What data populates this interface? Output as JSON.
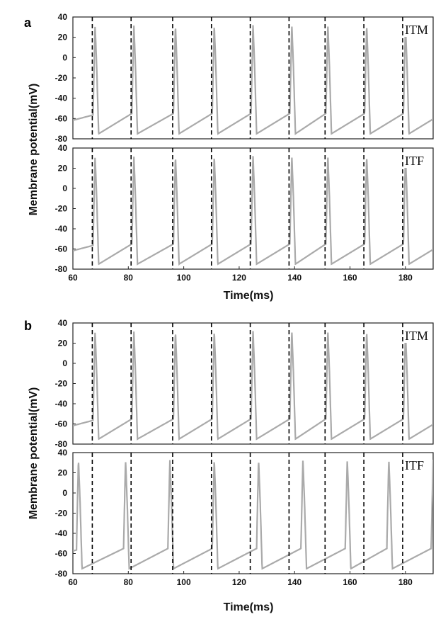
{
  "figure": {
    "panels": [
      {
        "label": "a",
        "xlabel": "Time(ms)",
        "ylabel": "Membrane potential(mV)"
      },
      {
        "label": "b",
        "xlabel": "Time(ms)",
        "ylabel": "Membrane potential(mV)"
      }
    ]
  },
  "chart_data": [
    {
      "type": "line",
      "panel": "a",
      "title": "ITM",
      "xlim": [
        60,
        190
      ],
      "ylim": [
        -80,
        40
      ],
      "xticks": [
        60,
        80,
        100,
        120,
        140,
        160,
        180
      ],
      "yticks": [
        -80,
        -60,
        -40,
        -20,
        0,
        20,
        40
      ],
      "line_color": "#aaaaaa",
      "grid": false,
      "markers": [
        67,
        81,
        96,
        110,
        124,
        138,
        151,
        165,
        179
      ],
      "spikes": [
        68,
        82,
        97,
        111,
        125,
        139,
        152,
        166,
        180
      ],
      "rest": -75,
      "peak": 32
    },
    {
      "type": "line",
      "panel": "a",
      "title": "ITF",
      "xlim": [
        60,
        190
      ],
      "ylim": [
        -80,
        40
      ],
      "xticks": [
        60,
        80,
        100,
        120,
        140,
        160,
        180
      ],
      "yticks": [
        -80,
        -60,
        -40,
        -20,
        0,
        20,
        40
      ],
      "line_color": "#aaaaaa",
      "grid": false,
      "markers": [
        67,
        81,
        96,
        110,
        124,
        138,
        151,
        165,
        179
      ],
      "spikes": [
        68,
        82,
        97,
        111,
        125,
        139,
        152,
        166,
        180
      ],
      "rest": -75,
      "peak": 32
    },
    {
      "type": "line",
      "panel": "b",
      "title": "ITM",
      "xlim": [
        60,
        190
      ],
      "ylim": [
        -80,
        40
      ],
      "xticks": [
        60,
        80,
        100,
        120,
        140,
        160,
        180
      ],
      "yticks": [
        -80,
        -60,
        -40,
        -20,
        0,
        20,
        40
      ],
      "line_color": "#aaaaaa",
      "grid": false,
      "markers": [
        67,
        81,
        96,
        110,
        124,
        138,
        151,
        165,
        179
      ],
      "spikes": [
        68,
        82,
        97,
        111,
        125,
        139,
        152,
        166,
        180
      ],
      "rest": -75,
      "peak": 32
    },
    {
      "type": "line",
      "panel": "b",
      "title": "ITF",
      "xlim": [
        60,
        190
      ],
      "ylim": [
        -80,
        40
      ],
      "xticks": [
        60,
        80,
        100,
        120,
        140,
        160,
        180
      ],
      "yticks": [
        -80,
        -60,
        -40,
        -20,
        0,
        20,
        40
      ],
      "line_color": "#aaaaaa",
      "grid": false,
      "markers": [
        67,
        81,
        96,
        110,
        124,
        138,
        151,
        165,
        179
      ],
      "spikes": [
        62,
        79,
        95,
        111,
        127,
        143,
        159,
        174,
        190
      ],
      "rest": -75,
      "peak": 33
    }
  ]
}
